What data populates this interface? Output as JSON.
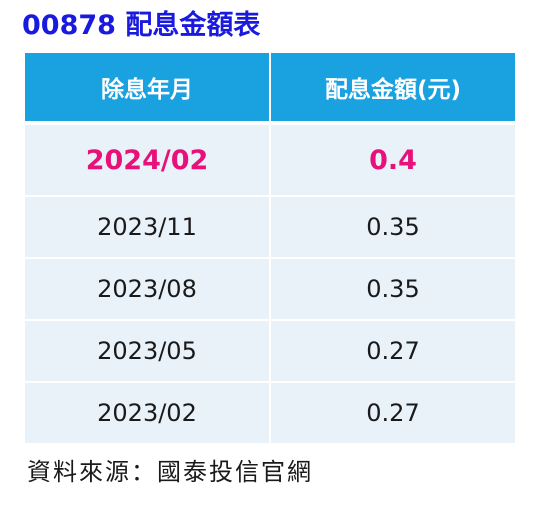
{
  "title": "00878 配息金額表",
  "table": {
    "headers": {
      "date": "除息年月",
      "amount": "配息金額(元)"
    },
    "rows": [
      {
        "date": "2024/02",
        "amount": "0.4"
      },
      {
        "date": "2023/11",
        "amount": "0.35"
      },
      {
        "date": "2023/08",
        "amount": "0.35"
      },
      {
        "date": "2023/05",
        "amount": "0.27"
      },
      {
        "date": "2023/02",
        "amount": "0.27"
      }
    ]
  },
  "source": "資料來源：國泰投信官網",
  "colors": {
    "title": "#1a1adf",
    "header_bg": "#1aa1e0",
    "row_bg": "#e9f1f9",
    "highlight_text": "#e8117a"
  }
}
